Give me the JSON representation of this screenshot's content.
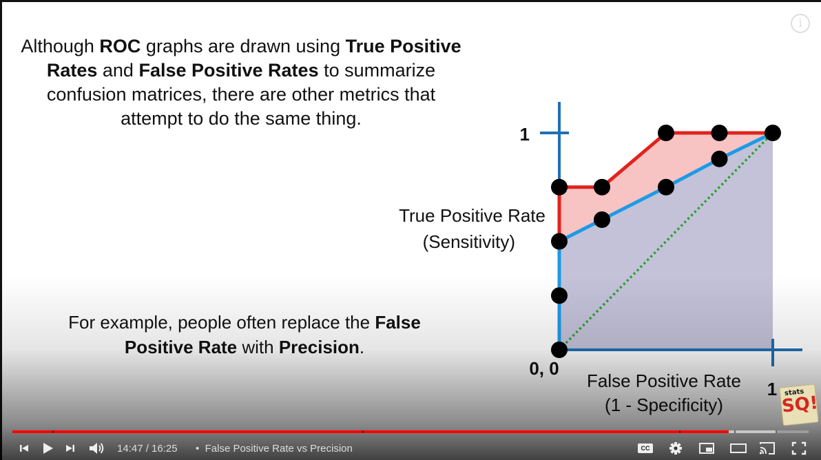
{
  "slide": {
    "intro_parts": [
      "Although ",
      "ROC",
      " graphs are drawn using ",
      "True Positive Rates",
      " and ",
      "False Positive Rates",
      " to summarize confusion matrices, there are other metrics that attempt to do the same thing."
    ],
    "example_parts": [
      "For example, people often replace the ",
      "False Positive Rate",
      " with ",
      "Precision",
      "."
    ]
  },
  "chart_data": {
    "type": "line",
    "y_label_lines": [
      "True Positive Rate",
      "(Sensitivity)"
    ],
    "x_label_lines": [
      "False Positive Rate",
      "(1 - Specificity)"
    ],
    "origin_label": "0, 0",
    "y_tick_label": "1",
    "x_tick_label": "1",
    "xlim": [
      0,
      1
    ],
    "ylim": [
      0,
      1
    ],
    "series": [
      {
        "color": "#e0231c",
        "points": [
          [
            0,
            0.75
          ],
          [
            0.2,
            0.75
          ],
          [
            0.5,
            1.0
          ],
          [
            0.75,
            1.0
          ],
          [
            1.0,
            1.0
          ]
        ]
      },
      {
        "color": "#1c9be6",
        "points": [
          [
            0,
            0
          ],
          [
            0,
            0.5
          ],
          [
            0.2,
            0.6
          ],
          [
            0.5,
            0.75
          ],
          [
            0.75,
            0.88
          ],
          [
            1.0,
            1.0
          ]
        ]
      }
    ],
    "diagonal_color": "#2aa02a",
    "points": [
      [
        0,
        0
      ],
      [
        0,
        0.25
      ],
      [
        0,
        0.5
      ],
      [
        0,
        0.75
      ],
      [
        0.2,
        0.75
      ],
      [
        0.2,
        0.6
      ],
      [
        0.5,
        1.0
      ],
      [
        0.5,
        0.75
      ],
      [
        0.75,
        1.0
      ],
      [
        0.75,
        0.88
      ],
      [
        1.0,
        1.0
      ]
    ],
    "fill_colors": {
      "between": "#f7c3c3",
      "under": "#c3c2d9"
    }
  },
  "player": {
    "time_text": "14:47 / 16:25",
    "separator": "•",
    "chapter_title": "False Positive Rate vs Precision",
    "progress_played": 0.9,
    "progress_loaded": 0.96,
    "info_glyph": "i",
    "cc_text": "CC",
    "logo_main": "SQ!",
    "logo_small": "stats"
  }
}
